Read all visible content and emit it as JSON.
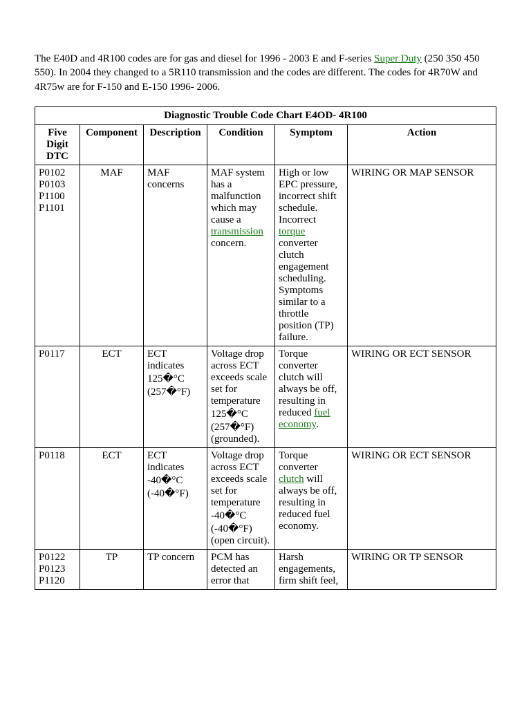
{
  "intro": {
    "seg1": "The E40D and 4R100 codes are for gas and diesel for 1996 - 2003 E and F-series ",
    "link1": "Super Duty",
    "seg2": " (250 350 450 550). In 2004 they changed to a 5R110 transmission and the codes are different. The codes for 4R70W and 4R75w are for F-150 and E-150 1996- 2006."
  },
  "table": {
    "title": "Diagnostic Trouble Code Chart E4OD- 4R100",
    "headers": {
      "dtc": "Five Digit DTC",
      "component": "Component",
      "description": "Description",
      "condition": "Condition",
      "symptom": "Symptom",
      "action": "Action"
    },
    "rows": [
      {
        "dtc": "P0102 P0103 P1100 P1101",
        "component": "MAF",
        "description": "MAF concerns",
        "condition_pre": "MAF system has a malfunction which may cause a ",
        "condition_link": "transmission",
        "condition_post": " concern.",
        "symptom_pre": "High or low EPC pressure, incorrect shift schedule. Incorrect ",
        "symptom_link": "torque",
        "symptom_post": " converter clutch engagement scheduling. Symptoms similar to a throttle position (TP) failure.",
        "action": "WIRING OR MAP SENSOR"
      },
      {
        "dtc": "P0117",
        "component": "ECT",
        "description": "ECT indicates 125�°C (257�°F)",
        "condition": "Voltage drop across ECT exceeds scale set for temperature 125�°C (257�°F) (grounded).",
        "symptom_pre": "Torque converter clutch will always be off, resulting in reduced ",
        "symptom_link": "fuel economy",
        "symptom_post": ".",
        "action": "WIRING OR ECT SENSOR"
      },
      {
        "dtc": "P0118",
        "component": "ECT",
        "description": "ECT indicates -40�°C (-40�°F)",
        "condition": "Voltage drop across ECT exceeds scale set for temperature -40�°C (-40�°F) (open circuit).",
        "symptom_pre": "Torque converter ",
        "symptom_link": "clutch",
        "symptom_post": " will always be off, resulting in reduced fuel economy.",
        "action": "WIRING OR ECT SENSOR"
      },
      {
        "dtc": "P0122 P0123 P1120",
        "component": "TP",
        "description": "TP concern",
        "condition": "PCM has detected an error that",
        "symptom": "Harsh engagements, firm shift feel,",
        "action": "WIRING OR TP SENSOR"
      }
    ]
  },
  "colors": {
    "link": "#1a7a1a",
    "border": "#000000",
    "text": "#000000",
    "bg": "#ffffff"
  }
}
